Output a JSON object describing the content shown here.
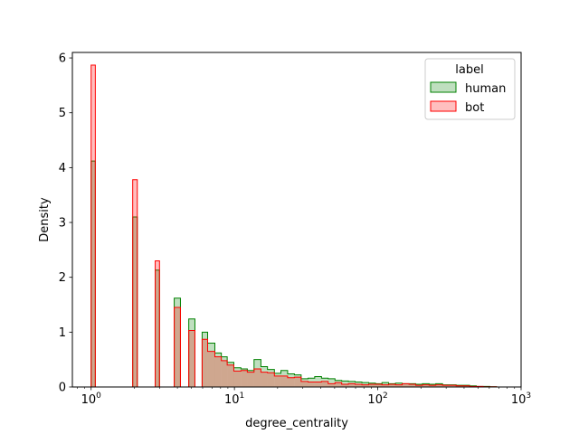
{
  "chart_data": {
    "type": "histogram",
    "xlabel": "degree_centrality",
    "ylabel": "Density",
    "xscale": "log",
    "xlim": [
      0.74,
      1000
    ],
    "ylim": [
      0,
      6.1
    ],
    "x_ticks": [
      {
        "value": 1,
        "base": "10",
        "exp": "0"
      },
      {
        "value": 10,
        "base": "10",
        "exp": "1"
      },
      {
        "value": 100,
        "base": "10",
        "exp": "2"
      },
      {
        "value": 1000,
        "base": "10",
        "exp": "3"
      }
    ],
    "y_ticks": [
      "0",
      "1",
      "2",
      "3",
      "4",
      "5",
      "6"
    ],
    "legend": {
      "title": "label",
      "placement": "top-right"
    },
    "series": [
      {
        "name": "human",
        "stroke": "#008000",
        "fill": "#008000",
        "bins": [
          [
            1.0,
            1.07,
            4.12
          ],
          [
            1.07,
            1.95,
            0.0
          ],
          [
            1.95,
            2.1,
            3.1
          ],
          [
            2.1,
            2.8,
            0.0
          ],
          [
            2.8,
            3.0,
            2.13
          ],
          [
            3.0,
            3.8,
            0.0
          ],
          [
            3.8,
            4.2,
            1.62
          ],
          [
            4.2,
            4.8,
            0.0
          ],
          [
            4.8,
            5.3,
            1.24
          ],
          [
            5.3,
            5.95,
            0.0
          ],
          [
            5.95,
            6.5,
            1.0
          ],
          [
            6.5,
            7.3,
            0.8
          ],
          [
            7.3,
            8.1,
            0.62
          ],
          [
            8.1,
            8.9,
            0.55
          ],
          [
            8.9,
            9.9,
            0.45
          ],
          [
            9.9,
            11.1,
            0.35
          ],
          [
            11.1,
            12.3,
            0.33
          ],
          [
            12.3,
            13.7,
            0.3
          ],
          [
            13.7,
            15.3,
            0.5
          ],
          [
            15.3,
            17.0,
            0.37
          ],
          [
            17.0,
            19.0,
            0.32
          ],
          [
            19.0,
            21.1,
            0.25
          ],
          [
            21.1,
            23.5,
            0.3
          ],
          [
            23.5,
            26.2,
            0.24
          ],
          [
            26.2,
            29.2,
            0.22
          ],
          [
            29.2,
            32.6,
            0.15
          ],
          [
            32.6,
            36.3,
            0.16
          ],
          [
            36.3,
            40.5,
            0.19
          ],
          [
            40.5,
            45.1,
            0.16
          ],
          [
            45.1,
            50.3,
            0.15
          ],
          [
            50.3,
            56.0,
            0.12
          ],
          [
            56.0,
            62.4,
            0.11
          ],
          [
            62.4,
            69.5,
            0.1
          ],
          [
            69.5,
            77.5,
            0.09
          ],
          [
            77.5,
            86.4,
            0.08
          ],
          [
            86.4,
            96.3,
            0.07
          ],
          [
            96.3,
            107,
            0.06
          ],
          [
            107,
            119,
            0.08
          ],
          [
            119,
            133,
            0.06
          ],
          [
            133,
            148,
            0.07
          ],
          [
            148,
            165,
            0.06
          ],
          [
            165,
            184,
            0.06
          ],
          [
            184,
            205,
            0.05
          ],
          [
            205,
            228,
            0.06
          ],
          [
            228,
            254,
            0.05
          ],
          [
            254,
            283,
            0.06
          ],
          [
            283,
            316,
            0.04
          ],
          [
            316,
            352,
            0.04
          ],
          [
            352,
            392,
            0.03
          ],
          [
            392,
            437,
            0.03
          ],
          [
            437,
            487,
            0.02
          ],
          [
            487,
            543,
            0.01
          ],
          [
            543,
            605,
            0.01
          ],
          [
            605,
            674,
            0.005
          ]
        ]
      },
      {
        "name": "bot",
        "stroke": "#ff0000",
        "fill": "#ff0000",
        "bins": [
          [
            1.0,
            1.07,
            5.87
          ],
          [
            1.07,
            1.95,
            0.0
          ],
          [
            1.95,
            2.1,
            3.78
          ],
          [
            2.1,
            2.8,
            0.0
          ],
          [
            2.8,
            3.0,
            2.3
          ],
          [
            3.0,
            3.8,
            0.0
          ],
          [
            3.8,
            4.2,
            1.45
          ],
          [
            4.2,
            4.8,
            0.0
          ],
          [
            4.8,
            5.3,
            1.03
          ],
          [
            5.3,
            5.95,
            0.0
          ],
          [
            5.95,
            6.5,
            0.87
          ],
          [
            6.5,
            7.3,
            0.65
          ],
          [
            7.3,
            8.1,
            0.55
          ],
          [
            8.1,
            8.9,
            0.48
          ],
          [
            8.9,
            9.9,
            0.4
          ],
          [
            9.9,
            11.1,
            0.29
          ],
          [
            11.1,
            12.3,
            0.3
          ],
          [
            12.3,
            13.7,
            0.27
          ],
          [
            13.7,
            15.3,
            0.33
          ],
          [
            15.3,
            17.0,
            0.27
          ],
          [
            17.0,
            19.0,
            0.26
          ],
          [
            19.0,
            21.1,
            0.2
          ],
          [
            21.1,
            23.5,
            0.2
          ],
          [
            23.5,
            26.2,
            0.17
          ],
          [
            26.2,
            29.2,
            0.18
          ],
          [
            29.2,
            32.6,
            0.1
          ],
          [
            32.6,
            36.3,
            0.09
          ],
          [
            36.3,
            40.5,
            0.09
          ],
          [
            40.5,
            45.1,
            0.1
          ],
          [
            45.1,
            50.3,
            0.06
          ],
          [
            50.3,
            56.0,
            0.08
          ],
          [
            56.0,
            62.4,
            0.05
          ],
          [
            62.4,
            69.5,
            0.06
          ],
          [
            69.5,
            77.5,
            0.05
          ],
          [
            77.5,
            86.4,
            0.04
          ],
          [
            86.4,
            96.3,
            0.05
          ],
          [
            96.3,
            107,
            0.05
          ],
          [
            107,
            119,
            0.04
          ],
          [
            119,
            133,
            0.05
          ],
          [
            133,
            148,
            0.04
          ],
          [
            148,
            165,
            0.06
          ],
          [
            165,
            184,
            0.05
          ],
          [
            184,
            205,
            0.03
          ],
          [
            205,
            228,
            0.04
          ],
          [
            228,
            254,
            0.03
          ],
          [
            254,
            283,
            0.04
          ],
          [
            283,
            316,
            0.03
          ],
          [
            316,
            352,
            0.03
          ],
          [
            352,
            392,
            0.02
          ],
          [
            392,
            437,
            0.02
          ],
          [
            437,
            487,
            0.01
          ],
          [
            487,
            543,
            0.01
          ],
          [
            543,
            605,
            0.005
          ],
          [
            605,
            674,
            0.005
          ]
        ]
      }
    ]
  }
}
